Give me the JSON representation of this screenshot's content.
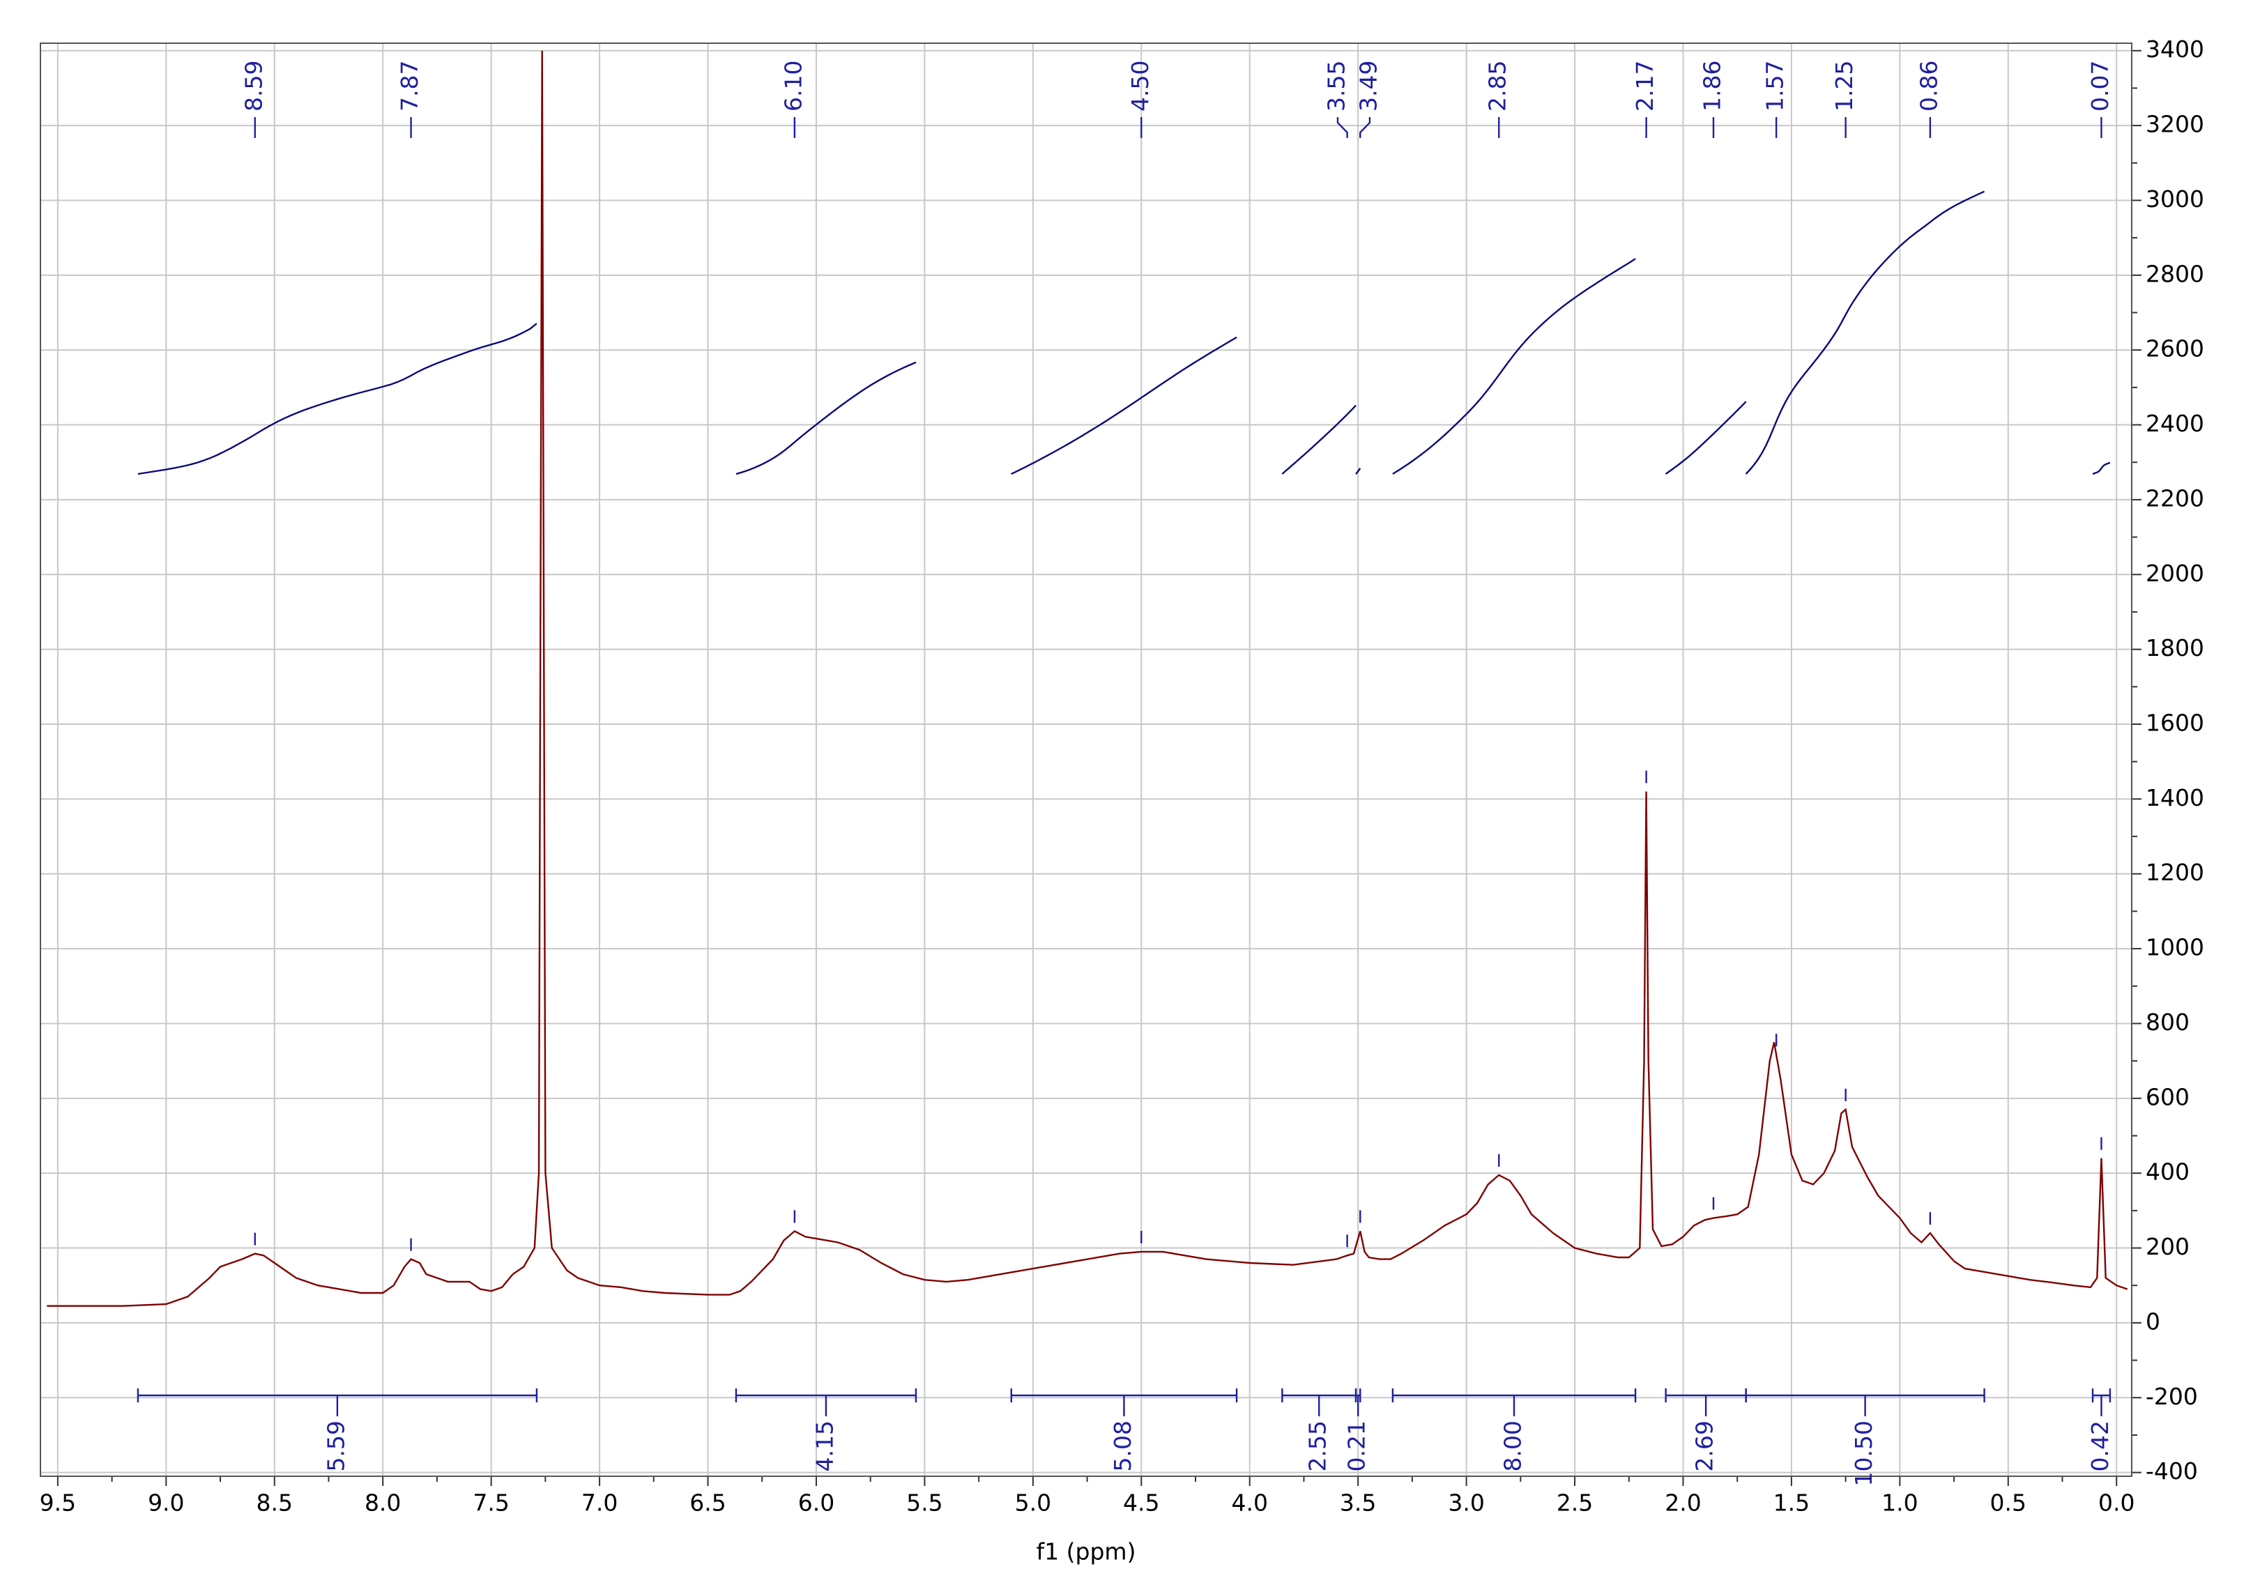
{
  "chart_data": {
    "type": "nmr",
    "x_label": "f1 (ppm)",
    "xlim": [
      9.58,
      -0.07
    ],
    "ylim": [
      -410,
      3420
    ],
    "xticks": [
      9.5,
      {
        "value": 9,
        "label": "9.0"
      },
      8.5,
      {
        "value": 8,
        "label": "8.0"
      },
      7.5,
      {
        "value": 7,
        "label": "7.0"
      },
      6.5,
      {
        "value": 6,
        "label": "6.0"
      },
      5.5,
      {
        "value": 5,
        "label": "5.0"
      },
      4.5,
      {
        "value": 4,
        "label": "4.0"
      },
      3.5,
      {
        "value": 3,
        "label": "3.0"
      },
      2.5,
      {
        "value": 2,
        "label": "2.0"
      },
      1.5,
      {
        "value": 1,
        "label": "1.0"
      },
      0.5,
      {
        "value": 0,
        "label": "0.0"
      }
    ],
    "yticks": [
      -400,
      -200,
      0,
      200,
      400,
      600,
      800,
      1000,
      1200,
      1400,
      1600,
      1800,
      2000,
      2200,
      2400,
      2600,
      2800,
      3000,
      3200,
      3400
    ],
    "grid": true,
    "color": "#7f0000",
    "integral_color": "#0a0a7a",
    "label_color": "#1f1fa0",
    "x": [
      9.55,
      9.2,
      9.0,
      8.9,
      8.8,
      8.75,
      8.7,
      8.65,
      8.59,
      8.55,
      8.5,
      8.4,
      8.3,
      8.2,
      8.1,
      8.0,
      7.95,
      7.9,
      7.87,
      7.83,
      7.8,
      7.7,
      7.6,
      7.55,
      7.5,
      7.45,
      7.4,
      7.35,
      7.3,
      7.28,
      7.265,
      7.25,
      7.22,
      7.15,
      7.1,
      7.0,
      6.9,
      6.8,
      6.7,
      6.5,
      6.4,
      6.35,
      6.3,
      6.2,
      6.15,
      6.1,
      6.05,
      6.0,
      5.9,
      5.8,
      5.7,
      5.6,
      5.5,
      5.4,
      5.3,
      5.2,
      5.0,
      4.8,
      4.6,
      4.5,
      4.4,
      4.3,
      4.2,
      4.0,
      3.8,
      3.6,
      3.55,
      3.52,
      3.49,
      3.47,
      3.45,
      3.4,
      3.35,
      3.3,
      3.2,
      3.1,
      3.0,
      2.95,
      2.9,
      2.85,
      2.8,
      2.75,
      2.7,
      2.6,
      2.5,
      2.4,
      2.3,
      2.25,
      2.2,
      2.18,
      2.17,
      2.16,
      2.14,
      2.1,
      2.05,
      2.0,
      1.95,
      1.9,
      1.86,
      1.8,
      1.75,
      1.7,
      1.65,
      1.6,
      1.58,
      1.55,
      1.5,
      1.45,
      1.4,
      1.35,
      1.3,
      1.27,
      1.25,
      1.22,
      1.15,
      1.1,
      1.0,
      0.95,
      0.9,
      0.86,
      0.82,
      0.75,
      0.7,
      0.6,
      0.5,
      0.4,
      0.3,
      0.2,
      0.12,
      0.09,
      0.07,
      0.05,
      0.0,
      -0.05
    ],
    "values": [
      45,
      45,
      50,
      70,
      120,
      150,
      160,
      170,
      185,
      180,
      160,
      120,
      100,
      90,
      80,
      80,
      100,
      150,
      170,
      160,
      130,
      110,
      110,
      90,
      85,
      95,
      130,
      150,
      200,
      400,
      3400,
      400,
      200,
      140,
      120,
      100,
      95,
      85,
      80,
      75,
      75,
      85,
      110,
      170,
      220,
      245,
      230,
      225,
      215,
      195,
      160,
      130,
      115,
      110,
      115,
      125,
      145,
      165,
      185,
      190,
      190,
      180,
      170,
      160,
      155,
      170,
      180,
      185,
      245,
      190,
      175,
      170,
      170,
      185,
      220,
      260,
      290,
      320,
      370,
      395,
      380,
      340,
      290,
      240,
      200,
      185,
      175,
      175,
      200,
      700,
      1420,
      700,
      250,
      205,
      210,
      230,
      260,
      275,
      280,
      285,
      290,
      310,
      450,
      700,
      750,
      650,
      450,
      380,
      370,
      400,
      460,
      560,
      570,
      470,
      390,
      340,
      280,
      240,
      215,
      240,
      210,
      165,
      145,
      135,
      125,
      115,
      108,
      100,
      95,
      120,
      440,
      120,
      100,
      90
    ],
    "peaks": [
      {
        "value": 8.59,
        "label": "8.59"
      },
      {
        "value": 7.87,
        "label": "7.87"
      },
      {
        "value": 6.1,
        "label": "6.10"
      },
      {
        "value": 4.5,
        "label": "4.50"
      },
      {
        "value": 3.55,
        "label": "3.55"
      },
      {
        "value": 3.49,
        "label": "3.49"
      },
      {
        "value": 2.85,
        "label": "2.85"
      },
      {
        "value": 2.17,
        "label": "2.17"
      },
      {
        "value": 1.86,
        "label": "1.86"
      },
      {
        "value": 1.57,
        "label": "1.57"
      },
      {
        "value": 1.25,
        "label": "1.25"
      },
      {
        "value": 0.86,
        "label": "0.86"
      },
      {
        "value": 0.07,
        "label": "0.07"
      }
    ],
    "integrals": [
      {
        "range": [
          9.13,
          7.29
        ],
        "value": 5.59,
        "label": "5.59"
      },
      {
        "range": [
          6.37,
          5.54
        ],
        "value": 4.15,
        "label": "4.15"
      },
      {
        "range": [
          5.1,
          4.06
        ],
        "value": 5.08,
        "label": "5.08"
      },
      {
        "range": [
          3.85,
          3.51
        ],
        "value": 2.55,
        "label": "2.55"
      },
      {
        "range": [
          3.51,
          3.49
        ],
        "value": 0.21,
        "label": "0.21"
      },
      {
        "range": [
          3.34,
          2.22
        ],
        "value": 8,
        "label": "8.00"
      },
      {
        "range": [
          2.08,
          1.71
        ],
        "value": 2.69,
        "label": "2.69"
      },
      {
        "range": [
          1.71,
          0.61
        ],
        "value": 10.5,
        "label": "10.50"
      },
      {
        "range": [
          0.11,
          0.03
        ],
        "value": 0.42,
        "label": "0.42"
      }
    ]
  }
}
